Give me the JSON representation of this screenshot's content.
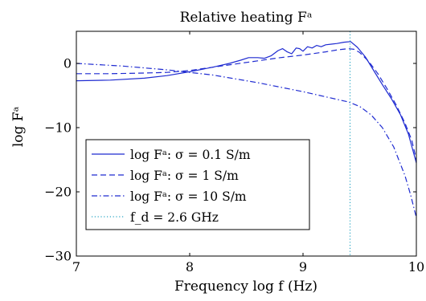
{
  "chart_data": {
    "type": "line",
    "title": "Relative heating Fᵃ",
    "xlabel": "Frequency log f (Hz)",
    "ylabel": "log Fᵃ",
    "xlim": [
      7,
      10
    ],
    "ylim": [
      -30,
      5
    ],
    "x_ticks": [
      "7",
      "8",
      "9",
      "10"
    ],
    "y_ticks": [
      "0",
      "−10",
      "−20",
      "−30"
    ],
    "grid": false,
    "legend_position": "bottom-left",
    "series": [
      {
        "name": "log Fᵃ: σ = 0.1 S/m",
        "color": "#1f2bd1",
        "dash": "solid",
        "points": [
          [
            7.0,
            -2.7
          ],
          [
            7.3,
            -2.6
          ],
          [
            7.6,
            -2.3
          ],
          [
            7.8,
            -1.9
          ],
          [
            8.0,
            -1.3
          ],
          [
            8.2,
            -0.6
          ],
          [
            8.35,
            0.0
          ],
          [
            8.45,
            0.5
          ],
          [
            8.52,
            0.9
          ],
          [
            8.6,
            0.9
          ],
          [
            8.66,
            0.8
          ],
          [
            8.72,
            1.2
          ],
          [
            8.78,
            2.0
          ],
          [
            8.82,
            2.3
          ],
          [
            8.86,
            1.8
          ],
          [
            8.9,
            1.5
          ],
          [
            8.94,
            2.4
          ],
          [
            8.97,
            2.3
          ],
          [
            9.0,
            1.9
          ],
          [
            9.04,
            2.6
          ],
          [
            9.08,
            2.4
          ],
          [
            9.12,
            2.8
          ],
          [
            9.16,
            2.6
          ],
          [
            9.2,
            2.9
          ],
          [
            9.25,
            3.0
          ],
          [
            9.3,
            3.1
          ],
          [
            9.36,
            3.3
          ],
          [
            9.42,
            3.4
          ],
          [
            9.48,
            2.5
          ],
          [
            9.55,
            1.0
          ],
          [
            9.62,
            -1.0
          ],
          [
            9.7,
            -3.3
          ],
          [
            9.78,
            -5.5
          ],
          [
            9.86,
            -8.0
          ],
          [
            9.93,
            -11.0
          ],
          [
            10.0,
            -15.5
          ]
        ]
      },
      {
        "name": "log Fᵃ: σ = 1 S/m",
        "color": "#1f2bd1",
        "dash": "dashed",
        "points": [
          [
            7.0,
            -1.6
          ],
          [
            7.3,
            -1.6
          ],
          [
            7.6,
            -1.5
          ],
          [
            7.8,
            -1.4
          ],
          [
            8.0,
            -1.1
          ],
          [
            8.2,
            -0.6
          ],
          [
            8.4,
            -0.1
          ],
          [
            8.6,
            0.4
          ],
          [
            8.8,
            0.9
          ],
          [
            9.0,
            1.3
          ],
          [
            9.2,
            1.8
          ],
          [
            9.3,
            2.1
          ],
          [
            9.4,
            2.3
          ],
          [
            9.45,
            2.2
          ],
          [
            9.5,
            1.7
          ],
          [
            9.58,
            0.3
          ],
          [
            9.66,
            -1.6
          ],
          [
            9.74,
            -3.9
          ],
          [
            9.82,
            -6.4
          ],
          [
            9.9,
            -9.3
          ],
          [
            9.96,
            -12.0
          ],
          [
            10.0,
            -15.0
          ]
        ]
      },
      {
        "name": "log Fᵃ: σ = 10 S/m",
        "color": "#1f2bd1",
        "dash": "dashdot",
        "points": [
          [
            7.0,
            0.0
          ],
          [
            7.2,
            -0.2
          ],
          [
            7.4,
            -0.4
          ],
          [
            7.6,
            -0.7
          ],
          [
            7.8,
            -1.0
          ],
          [
            8.0,
            -1.4
          ],
          [
            8.2,
            -1.8
          ],
          [
            8.4,
            -2.4
          ],
          [
            8.6,
            -3.0
          ],
          [
            8.8,
            -3.7
          ],
          [
            9.0,
            -4.4
          ],
          [
            9.2,
            -5.2
          ],
          [
            9.3,
            -5.6
          ],
          [
            9.4,
            -6.0
          ],
          [
            9.5,
            -6.7
          ],
          [
            9.6,
            -8.0
          ],
          [
            9.7,
            -10.0
          ],
          [
            9.8,
            -13.0
          ],
          [
            9.9,
            -17.5
          ],
          [
            9.95,
            -20.5
          ],
          [
            10.0,
            -24.0
          ]
        ]
      },
      {
        "name": "f_d = 2.6 GHz",
        "color": "#2aa6c4",
        "dash": "dotted",
        "vertical_x": 9.415
      }
    ]
  }
}
